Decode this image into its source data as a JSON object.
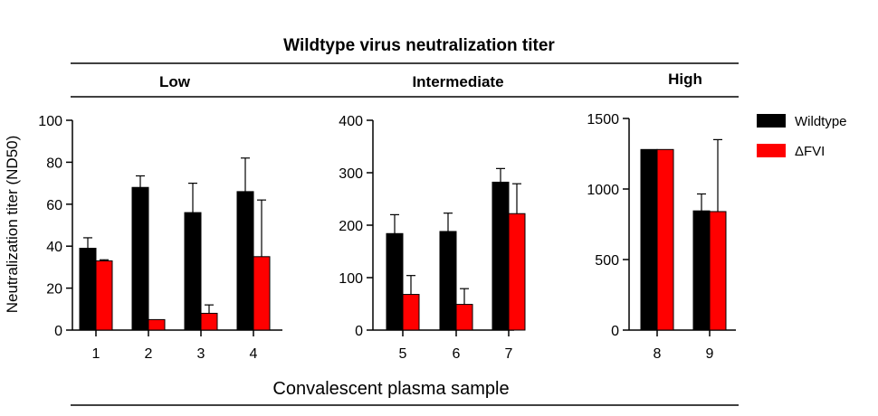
{
  "figure": {
    "title": "Wildtype virus neutralization titer",
    "xlabel": "Convalescent plasma sample",
    "ylabel": "Neutralization titer (ND50)"
  },
  "legend": {
    "placement": "top-right",
    "items": [
      {
        "label": "Wildtype",
        "color": "#000000"
      },
      {
        "label": "ΔFVI",
        "color": "#ff0000"
      }
    ]
  },
  "chart_data": [
    {
      "type": "bar",
      "title": "Low",
      "categories": [
        "1",
        "2",
        "3",
        "4"
      ],
      "ylim": [
        0,
        100
      ],
      "yticks": [
        0,
        20,
        40,
        60,
        80,
        100
      ],
      "series": [
        {
          "name": "Wildtype",
          "color": "#000000",
          "values": [
            39,
            68,
            56,
            66
          ],
          "errors": [
            5,
            5.5,
            14,
            16
          ]
        },
        {
          "name": "ΔFVI",
          "color": "#ff0000",
          "values": [
            33,
            5,
            8,
            35
          ],
          "errors": [
            0.5,
            0,
            4,
            27
          ]
        }
      ]
    },
    {
      "type": "bar",
      "title": "Intermediate",
      "categories": [
        "5",
        "6",
        "7"
      ],
      "ylim": [
        0,
        400
      ],
      "yticks": [
        0,
        100,
        200,
        300,
        400
      ],
      "series": [
        {
          "name": "Wildtype",
          "color": "#000000",
          "values": [
            184,
            188,
            282
          ],
          "errors": [
            36,
            35,
            26
          ]
        },
        {
          "name": "ΔFVI",
          "color": "#ff0000",
          "values": [
            68,
            49,
            222
          ],
          "errors": [
            36,
            30,
            57
          ]
        }
      ]
    },
    {
      "type": "bar",
      "title": "High",
      "categories": [
        "8",
        "9"
      ],
      "ylim": [
        0,
        1500
      ],
      "yticks": [
        0,
        500,
        1000,
        1500
      ],
      "series": [
        {
          "name": "Wildtype",
          "color": "#000000",
          "values": [
            1280,
            845
          ],
          "errors": [
            0,
            120
          ]
        },
        {
          "name": "ΔFVI",
          "color": "#ff0000",
          "values": [
            1280,
            840
          ],
          "errors": [
            0,
            510
          ]
        }
      ]
    }
  ]
}
